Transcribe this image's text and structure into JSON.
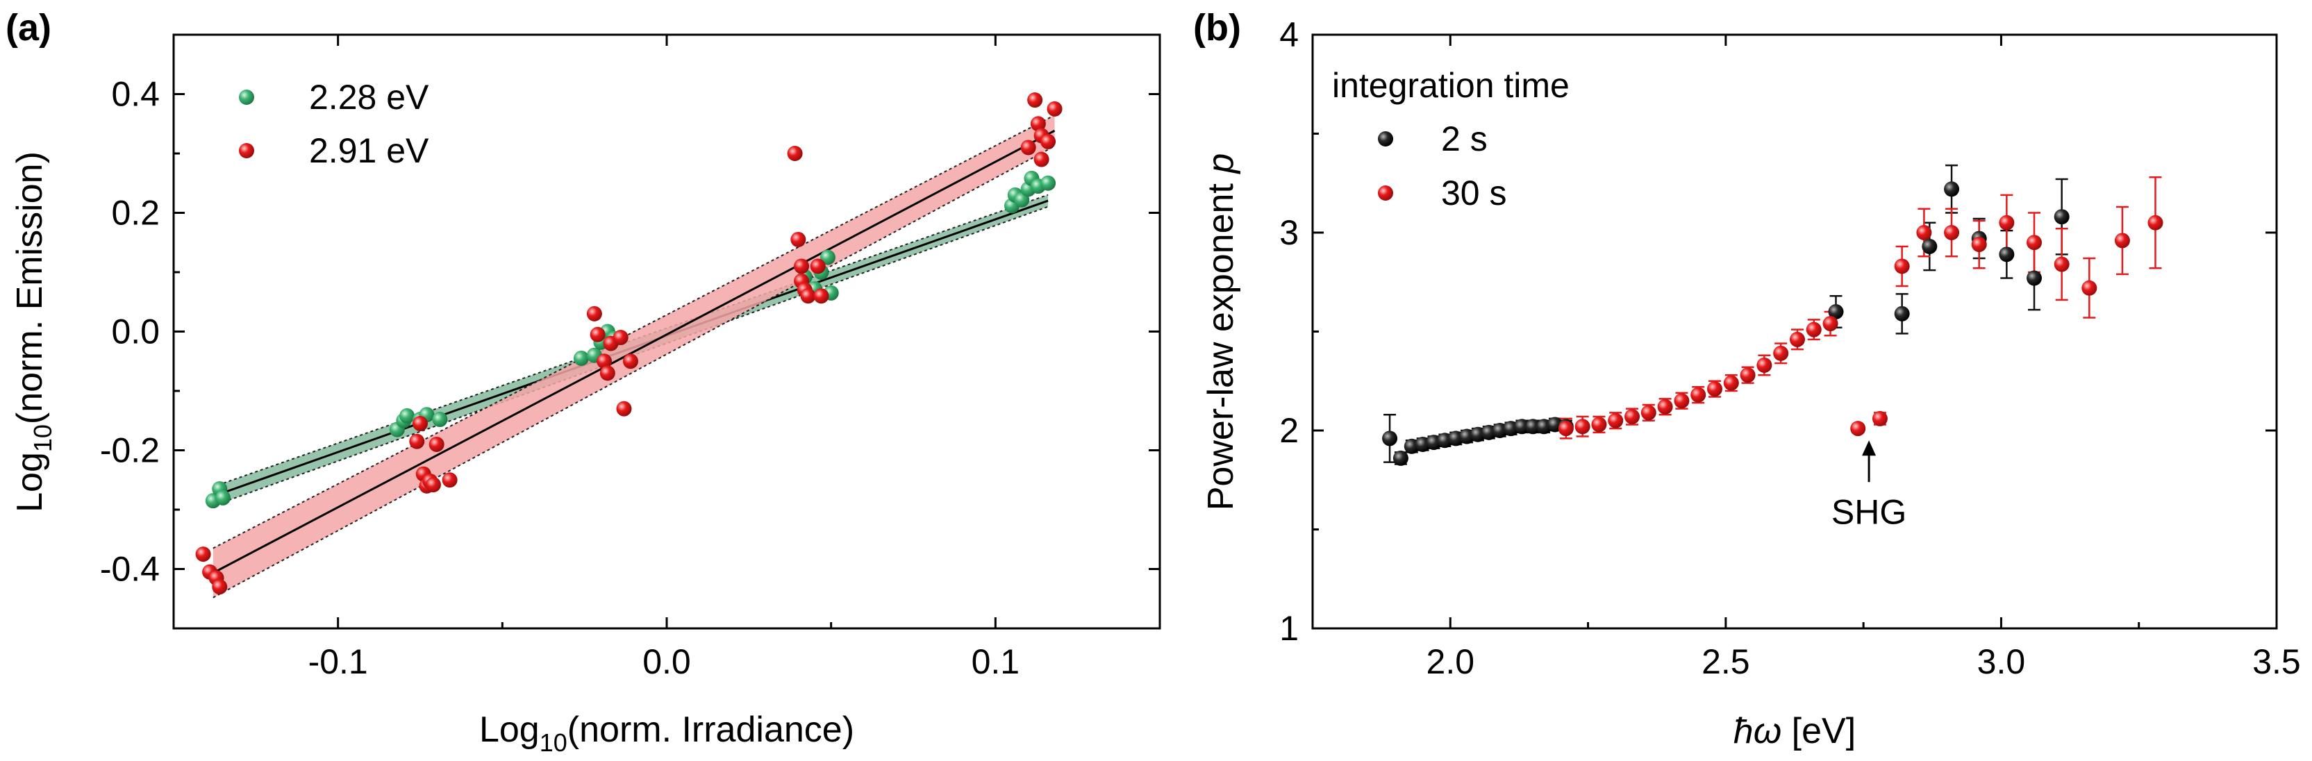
{
  "panels": {
    "a": {
      "label": "(a)"
    },
    "b": {
      "label": "(b)"
    }
  },
  "chart_data": [
    {
      "type": "scatter",
      "panel": "(a)",
      "xlabel_main": "Log",
      "xlabel_sub": "10",
      "xlabel_rest": "(norm. Irradiance)",
      "ylabel_main": "Log",
      "ylabel_sub": "10",
      "ylabel_rest": "(norm. Emission)",
      "xlim": [
        -0.15,
        0.15
      ],
      "ylim": [
        -0.5,
        0.5
      ],
      "xticks": [
        -0.1,
        0.0,
        0.1
      ],
      "xtick_labels": [
        "-0.1",
        "0.0",
        "0.1"
      ],
      "yticks": [
        -0.4,
        -0.2,
        0.0,
        0.2,
        0.4
      ],
      "ytick_labels": [
        "-0.4",
        "-0.2",
        "0.0",
        "0.2",
        "0.4"
      ],
      "legend_position": "top-left",
      "series": [
        {
          "name": "2.28 eV",
          "color": "#3cb371",
          "band_color": "#2e8b57",
          "points": [
            [
              -0.138,
              -0.285
            ],
            [
              -0.136,
              -0.265
            ],
            [
              -0.135,
              -0.28
            ],
            [
              -0.082,
              -0.165
            ],
            [
              -0.08,
              -0.15
            ],
            [
              -0.079,
              -0.142
            ],
            [
              -0.075,
              -0.148
            ],
            [
              -0.073,
              -0.14
            ],
            [
              -0.069,
              -0.148
            ],
            [
              -0.026,
              -0.045
            ],
            [
              -0.022,
              -0.04
            ],
            [
              -0.02,
              -0.018
            ],
            [
              -0.018,
              0.0
            ],
            [
              -0.016,
              -0.012
            ],
            [
              0.042,
              0.092
            ],
            [
              0.045,
              0.072
            ],
            [
              0.047,
              0.1
            ],
            [
              0.049,
              0.125
            ],
            [
              0.05,
              0.065
            ],
            [
              0.105,
              0.212
            ],
            [
              0.106,
              0.23
            ],
            [
              0.108,
              0.222
            ],
            [
              0.11,
              0.24
            ],
            [
              0.111,
              0.258
            ],
            [
              0.113,
              0.245
            ],
            [
              0.116,
              0.25
            ]
          ],
          "fit": {
            "slope": 1.96,
            "intercept": -0.007,
            "x_range": [
              -0.138,
              0.116
            ],
            "band_halfwidth": 0.01
          }
        },
        {
          "name": "2.91 eV",
          "color": "#e8191a",
          "band_color": "#f4a6a6",
          "points": [
            [
              -0.141,
              -0.375
            ],
            [
              -0.139,
              -0.405
            ],
            [
              -0.137,
              -0.415
            ],
            [
              -0.136,
              -0.43
            ],
            [
              -0.076,
              -0.185
            ],
            [
              -0.075,
              -0.155
            ],
            [
              -0.074,
              -0.24
            ],
            [
              -0.073,
              -0.26
            ],
            [
              -0.072,
              -0.252
            ],
            [
              -0.071,
              -0.258
            ],
            [
              -0.07,
              -0.19
            ],
            [
              -0.066,
              -0.25
            ],
            [
              -0.022,
              0.03
            ],
            [
              -0.021,
              -0.005
            ],
            [
              -0.019,
              -0.05
            ],
            [
              -0.018,
              -0.07
            ],
            [
              -0.017,
              -0.02
            ],
            [
              -0.014,
              -0.01
            ],
            [
              -0.013,
              -0.13
            ],
            [
              -0.011,
              -0.05
            ],
            [
              0.039,
              0.3
            ],
            [
              0.04,
              0.155
            ],
            [
              0.041,
              0.11
            ],
            [
              0.041,
              0.085
            ],
            [
              0.042,
              0.07
            ],
            [
              0.043,
              0.06
            ],
            [
              0.046,
              0.11
            ],
            [
              0.047,
              0.06
            ],
            [
              0.11,
              0.31
            ],
            [
              0.112,
              0.39
            ],
            [
              0.113,
              0.35
            ],
            [
              0.114,
              0.33
            ],
            [
              0.114,
              0.29
            ],
            [
              0.116,
              0.32
            ],
            [
              0.118,
              0.375
            ]
          ],
          "fit": {
            "slope": 2.91,
            "intercept": -0.005,
            "x_range": [
              -0.138,
              0.118
            ],
            "band_halfwidth": 0.026
          }
        }
      ]
    },
    {
      "type": "scatter",
      "panel": "(b)",
      "xlabel_main": "ħω",
      "xlabel_rest": " [eV]",
      "ylabel_main": "Power-law exponent ",
      "ylabel_italic": "p",
      "xlim": [
        1.75,
        3.5
      ],
      "ylim": [
        1,
        4
      ],
      "xticks": [
        2.0,
        2.5,
        3.0,
        3.5
      ],
      "xtick_labels": [
        "2.0",
        "2.5",
        "3.0",
        "3.5"
      ],
      "yticks": [
        1,
        2,
        3,
        4
      ],
      "ytick_labels": [
        "1",
        "2",
        "3",
        "4"
      ],
      "legend_title": "integration time",
      "legend_position": "top-left",
      "annotation": {
        "text": "SHG",
        "x": 2.76,
        "y_tip": 1.95
      },
      "series": [
        {
          "name": "2 s",
          "color": "#111111",
          "points": [
            [
              1.89,
              1.96,
              0.12
            ],
            [
              1.91,
              1.86,
              0.03
            ],
            [
              1.93,
              1.92,
              0.03
            ],
            [
              1.95,
              1.93,
              0.03
            ],
            [
              1.97,
              1.94,
              0.03
            ],
            [
              1.99,
              1.95,
              0.03
            ],
            [
              2.01,
              1.96,
              0.03
            ],
            [
              2.03,
              1.97,
              0.03
            ],
            [
              2.05,
              1.98,
              0.03
            ],
            [
              2.07,
              1.99,
              0.03
            ],
            [
              2.09,
              2.0,
              0.03
            ],
            [
              2.11,
              2.01,
              0.03
            ],
            [
              2.13,
              2.02,
              0.03
            ],
            [
              2.15,
              2.02,
              0.03
            ],
            [
              2.17,
              2.02,
              0.03
            ],
            [
              2.19,
              2.03,
              0.03
            ],
            [
              2.21,
              2.02,
              0.03
            ],
            [
              2.7,
              2.6,
              0.08
            ],
            [
              2.82,
              2.59,
              0.1
            ],
            [
              2.87,
              2.93,
              0.12
            ],
            [
              2.91,
              3.22,
              0.12
            ],
            [
              2.96,
              2.97,
              0.1
            ],
            [
              3.01,
              2.89,
              0.12
            ],
            [
              3.06,
              2.77,
              0.16
            ],
            [
              3.11,
              3.08,
              0.19
            ]
          ]
        },
        {
          "name": "30 s",
          "color": "#e8191a",
          "points": [
            [
              2.21,
              2.01,
              0.05
            ],
            [
              2.24,
              2.02,
              0.05
            ],
            [
              2.27,
              2.03,
              0.04
            ],
            [
              2.3,
              2.05,
              0.04
            ],
            [
              2.33,
              2.07,
              0.04
            ],
            [
              2.36,
              2.09,
              0.04
            ],
            [
              2.39,
              2.12,
              0.04
            ],
            [
              2.42,
              2.15,
              0.04
            ],
            [
              2.45,
              2.18,
              0.04
            ],
            [
              2.48,
              2.21,
              0.04
            ],
            [
              2.51,
              2.24,
              0.04
            ],
            [
              2.54,
              2.28,
              0.04
            ],
            [
              2.57,
              2.33,
              0.05
            ],
            [
              2.6,
              2.39,
              0.05
            ],
            [
              2.63,
              2.46,
              0.05
            ],
            [
              2.66,
              2.51,
              0.05
            ],
            [
              2.69,
              2.54,
              0.06
            ],
            [
              2.74,
              2.01,
              0.02
            ],
            [
              2.78,
              2.06,
              0.03
            ],
            [
              2.82,
              2.83,
              0.1
            ],
            [
              2.86,
              3.0,
              0.12
            ],
            [
              2.91,
              3.0,
              0.12
            ],
            [
              2.96,
              2.94,
              0.12
            ],
            [
              3.01,
              3.05,
              0.14
            ],
            [
              3.06,
              2.95,
              0.15
            ],
            [
              3.11,
              2.84,
              0.18
            ],
            [
              3.16,
              2.72,
              0.15
            ],
            [
              3.22,
              2.96,
              0.17
            ],
            [
              3.28,
              3.05,
              0.23
            ]
          ]
        }
      ]
    }
  ]
}
